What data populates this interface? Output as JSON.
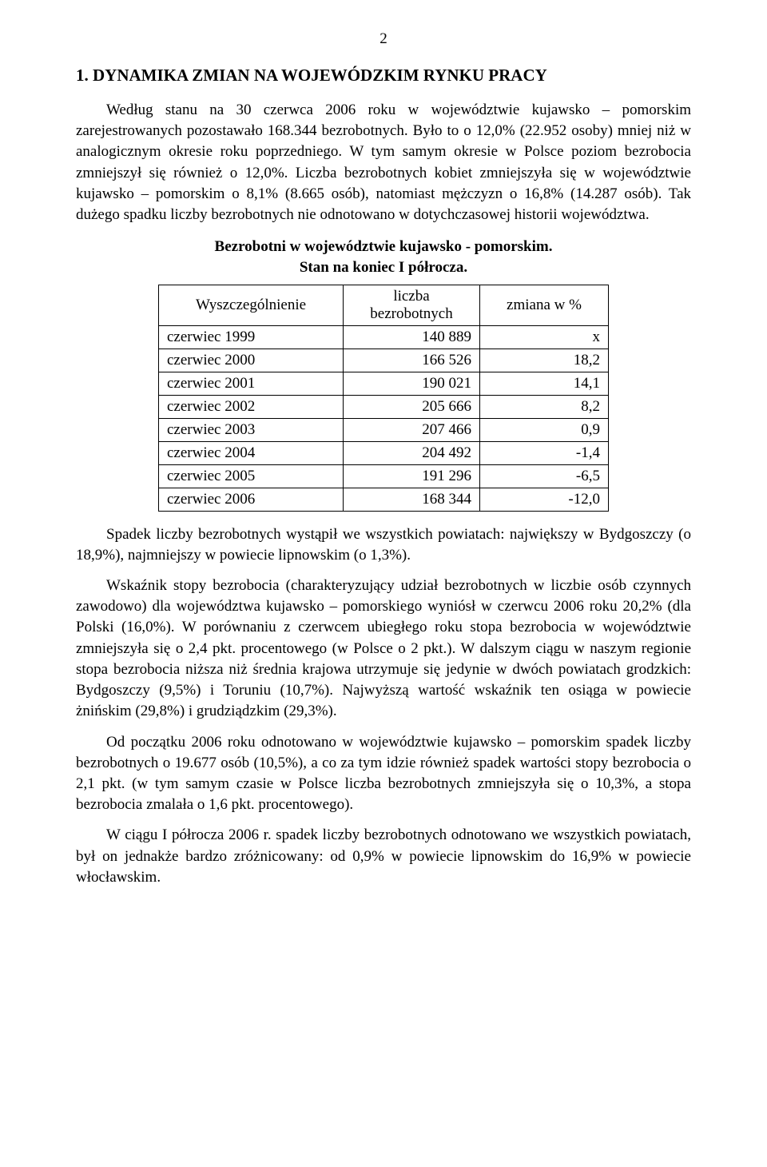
{
  "page_number": "2",
  "heading": "1.    DYNAMIKA ZMIAN NA WOJEWÓDZKIM RYNKU PRACY",
  "p1": "Według stanu na 30 czerwca 2006 roku w województwie kujawsko – pomorskim zarejestrowanych pozostawało 168.344 bezrobotnych. Było to o 12,0% (22.952 osoby) mniej niż w analogicznym okresie roku poprzedniego. W tym samym okresie w Polsce poziom bezrobocia zmniejszył się również o 12,0%. Liczba bezrobotnych kobiet zmniejszyła się w województwie kujawsko – pomorskim o 8,1% (8.665 osób), natomiast mężczyzn o 16,8% (14.287 osób). Tak dużego spadku liczby bezrobotnych nie odnotowano w dotychczasowej historii województwa.",
  "table": {
    "caption_line1": "Bezrobotni w województwie kujawsko - pomorskim.",
    "caption_line2": "Stan na koniec I półrocza.",
    "header_col0": "Wyszczególnienie",
    "header_col1_top": "liczba",
    "header_col1_bottom": "bezrobotnych",
    "header_col2": "zmiana w %",
    "rows": [
      {
        "label": "czerwiec 1999",
        "count": "140 889",
        "change": "x"
      },
      {
        "label": "czerwiec 2000",
        "count": "166 526",
        "change": "18,2"
      },
      {
        "label": "czerwiec 2001",
        "count": "190 021",
        "change": "14,1"
      },
      {
        "label": "czerwiec 2002",
        "count": "205 666",
        "change": "8,2"
      },
      {
        "label": "czerwiec 2003",
        "count": "207 466",
        "change": "0,9"
      },
      {
        "label": "czerwiec 2004",
        "count": "204 492",
        "change": "-1,4"
      },
      {
        "label": "czerwiec 2005",
        "count": "191 296",
        "change": "-6,5"
      },
      {
        "label": "czerwiec 2006",
        "count": "168 344",
        "change": "-12,0"
      }
    ]
  },
  "p2": "Spadek liczby bezrobotnych wystąpił we wszystkich powiatach: największy w Bydgoszczy (o 18,9%), najmniejszy w powiecie lipnowskim (o 1,3%).",
  "p3": "Wskaźnik stopy bezrobocia (charakteryzujący udział bezrobotnych w liczbie osób czynnych zawodowo) dla województwa kujawsko – pomorskiego wyniósł w czerwcu 2006 roku 20,2% (dla Polski (16,0%). W porównaniu z czerwcem ubiegłego roku stopa bezrobocia w województwie zmniejszyła się o 2,4 pkt. procentowego (w Polsce o 2 pkt.). W dalszym ciągu w naszym regionie stopa bezrobocia niższa niż średnia krajowa utrzymuje się jedynie w dwóch powiatach grodzkich: Bydgoszczy (9,5%) i Toruniu (10,7%). Najwyższą wartość wskaźnik ten osiąga w powiecie żnińskim (29,8%) i grudziądzkim (29,3%).",
  "p4": "Od początku 2006 roku odnotowano w województwie kujawsko – pomorskim spadek liczby bezrobotnych o 19.677 osób (10,5%), a co za tym idzie również spadek wartości stopy bezrobocia o 2,1 pkt. (w tym samym czasie w Polsce liczba bezrobotnych zmniejszyła się o 10,3%, a stopa bezrobocia zmalała o 1,6 pkt. procentowego).",
  "p5": "W ciągu I półrocza 2006 r. spadek liczby bezrobotnych odnotowano we wszystkich powiatach, był on jednakże bardzo zróżnicowany: od 0,9% w powiecie lipnowskim do 16,9% w powiecie włocławskim."
}
